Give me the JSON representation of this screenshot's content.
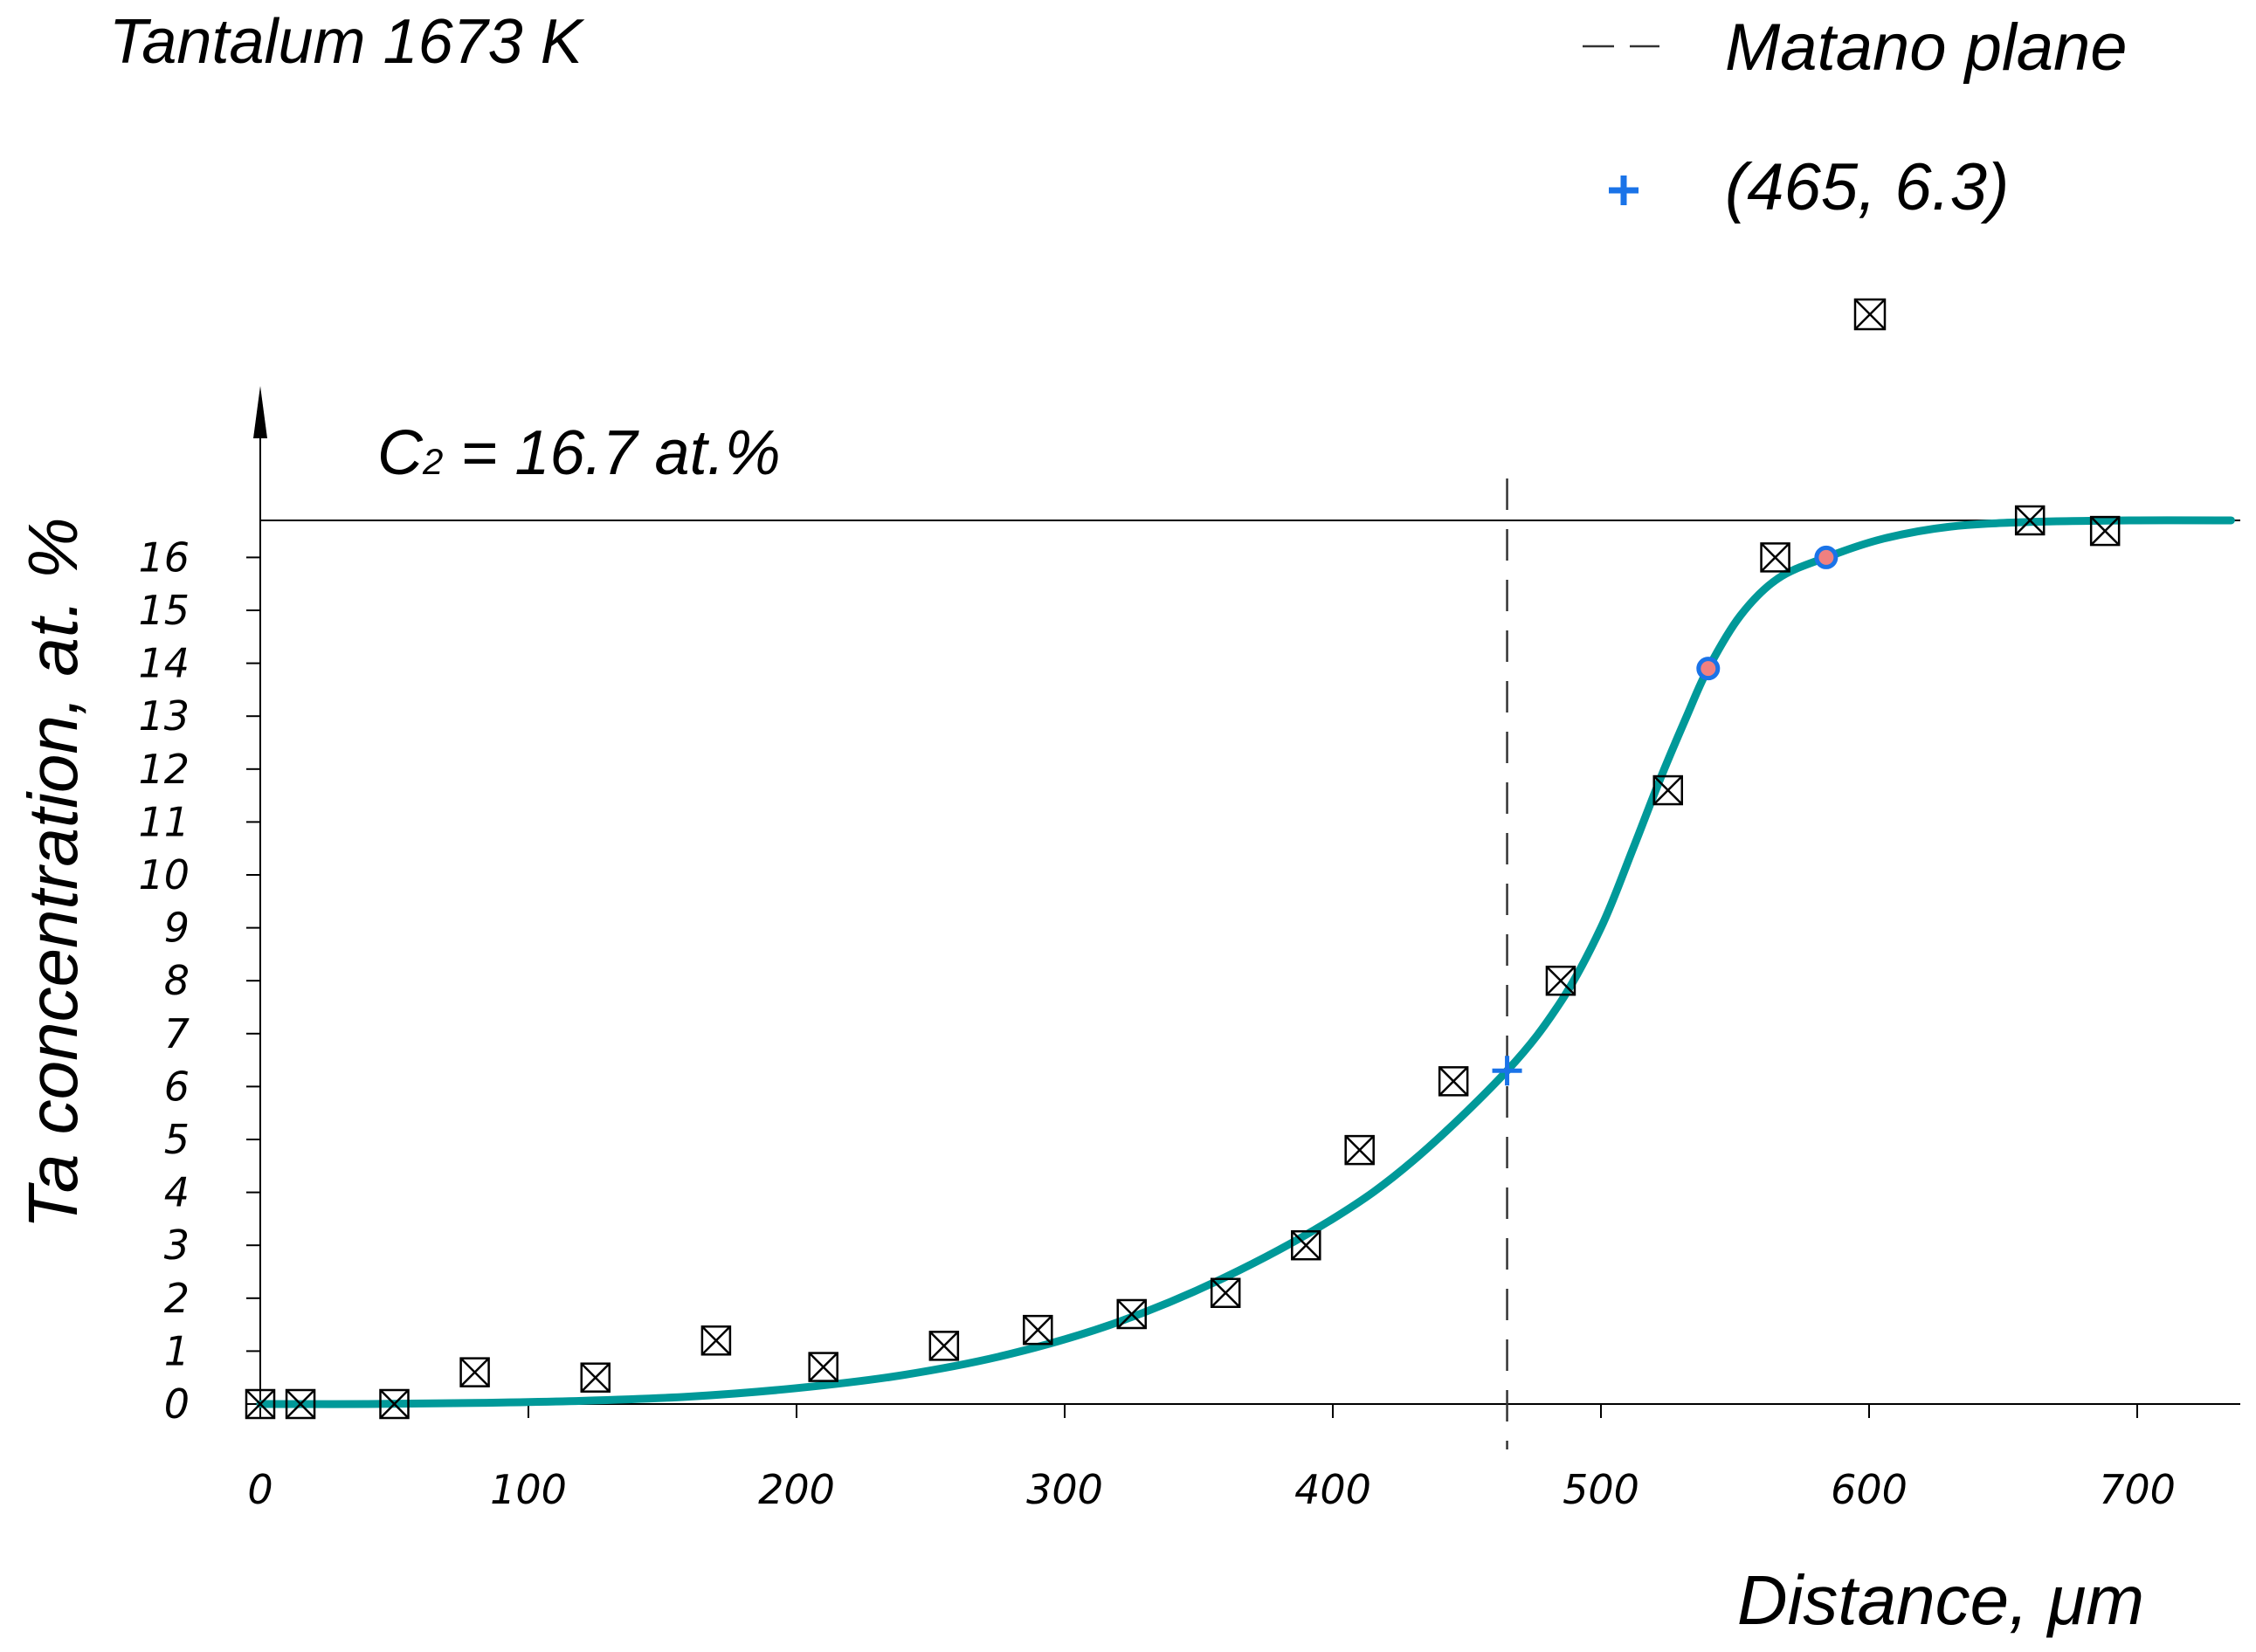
{
  "chart_data": {
    "type": "scatter",
    "title": "Tantalum 1673 K",
    "xlabel": "Distance, μm",
    "ylabel": "Ta concentration, at. %",
    "xlim": [
      0,
      740
    ],
    "ylim": [
      0,
      16.7
    ],
    "x_ticks": [
      "0",
      "100",
      "200",
      "300",
      "400",
      "500",
      "600",
      "700"
    ],
    "y_ticks": [
      "0",
      "1",
      "2",
      "3",
      "4",
      "5",
      "6",
      "7",
      "8",
      "9",
      "10",
      "11",
      "12",
      "13",
      "14",
      "15",
      "16"
    ],
    "c2_label": {
      "prefix": "C",
      "subscript": "2",
      "text": " = 16.7 at.%",
      "value": 16.7
    },
    "matano_plane": {
      "x": 465,
      "legend_label": "Matano plane"
    },
    "marked_point": {
      "x": 465,
      "y": 6.3,
      "legend_label": "(465, 6.3)"
    },
    "highlight_points": [
      {
        "x": 540,
        "y": 13.9
      },
      {
        "x": 584,
        "y": 16.0
      }
    ],
    "series": [
      {
        "marker": "crossed-square",
        "points": [
          {
            "x": 0,
            "y": 0
          },
          {
            "x": 15,
            "y": 0
          },
          {
            "x": 50,
            "y": 0
          },
          {
            "x": 80,
            "y": 0.6
          },
          {
            "x": 125,
            "y": 0.5
          },
          {
            "x": 170,
            "y": 1.2
          },
          {
            "x": 210,
            "y": 0.7
          },
          {
            "x": 255,
            "y": 1.1
          },
          {
            "x": 290,
            "y": 1.4
          },
          {
            "x": 325,
            "y": 1.7
          },
          {
            "x": 360,
            "y": 2.1
          },
          {
            "x": 390,
            "y": 3.0
          },
          {
            "x": 410,
            "y": 4.8
          },
          {
            "x": 445,
            "y": 6.1
          },
          {
            "x": 485,
            "y": 8.0
          },
          {
            "x": 525,
            "y": 11.6
          },
          {
            "x": 565,
            "y": 16.0
          },
          {
            "x": 660,
            "y": 16.7
          },
          {
            "x": 688,
            "y": 16.5
          }
        ]
      },
      {
        "marker": "line",
        "color": "#009999",
        "points": [
          {
            "x": 0,
            "y": 0.0
          },
          {
            "x": 40,
            "y": 0.0
          },
          {
            "x": 80,
            "y": 0.02
          },
          {
            "x": 120,
            "y": 0.06
          },
          {
            "x": 160,
            "y": 0.14
          },
          {
            "x": 200,
            "y": 0.3
          },
          {
            "x": 240,
            "y": 0.55
          },
          {
            "x": 280,
            "y": 0.95
          },
          {
            "x": 320,
            "y": 1.55
          },
          {
            "x": 360,
            "y": 2.4
          },
          {
            "x": 400,
            "y": 3.5
          },
          {
            "x": 430,
            "y": 4.6
          },
          {
            "x": 465,
            "y": 6.3
          },
          {
            "x": 485,
            "y": 7.6
          },
          {
            "x": 500,
            "y": 9.0
          },
          {
            "x": 512,
            "y": 10.5
          },
          {
            "x": 522,
            "y": 11.8
          },
          {
            "x": 532,
            "y": 13.0
          },
          {
            "x": 540,
            "y": 13.9
          },
          {
            "x": 552,
            "y": 14.9
          },
          {
            "x": 566,
            "y": 15.6
          },
          {
            "x": 584,
            "y": 16.0
          },
          {
            "x": 605,
            "y": 16.35
          },
          {
            "x": 630,
            "y": 16.58
          },
          {
            "x": 660,
            "y": 16.67
          },
          {
            "x": 700,
            "y": 16.7
          },
          {
            "x": 735,
            "y": 16.7
          }
        ]
      }
    ],
    "extra_legend_marker": "crossed-square"
  }
}
